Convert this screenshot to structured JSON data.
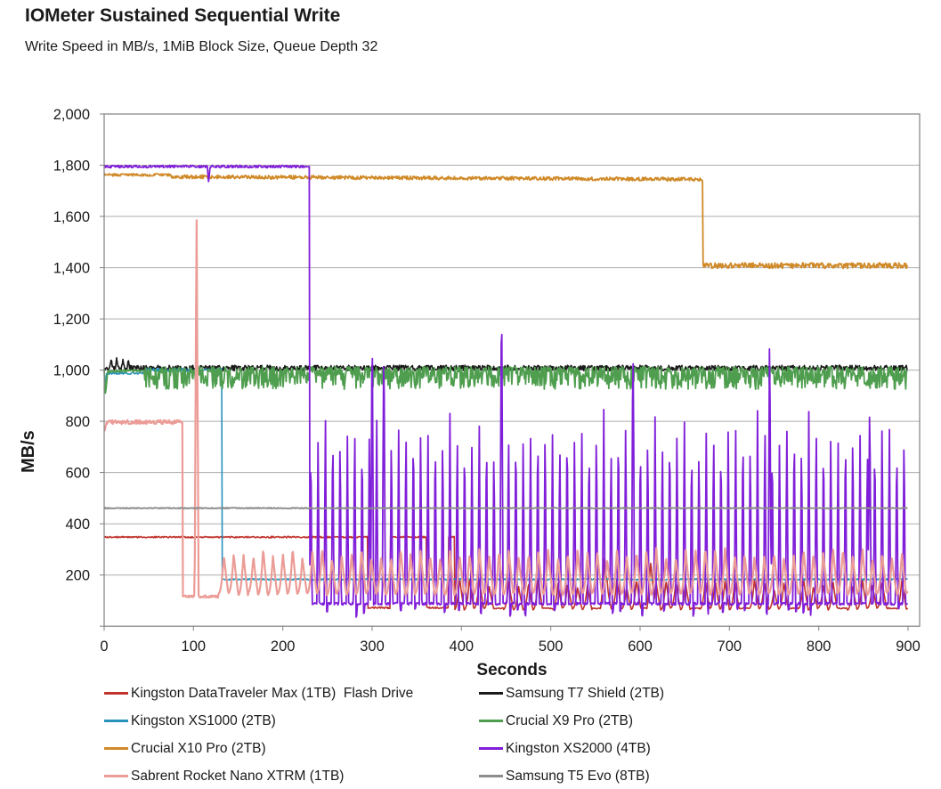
{
  "header": {
    "title": "IOMeter Sustained Sequential Write",
    "subtitle": "Write Speed in MB/s, 1MiB Block Size, Queue Depth 32"
  },
  "chart_data": {
    "type": "line",
    "title": "IOMeter Sustained Sequential Write",
    "subtitle": "Write Speed in MB/s, 1MiB Block Size, Queue Depth 32",
    "xlabel": "Seconds",
    "ylabel": "MB/s",
    "xlim": [
      0,
      900
    ],
    "ylim": [
      0,
      2000
    ],
    "grid": "horizontal-only",
    "legend_position": "bottom-two-columns",
    "axis_color": "#808080",
    "grid_color": "#ADADAD",
    "tick_label_color": "#1a1a1a",
    "x_ticks": [
      {
        "v": 0,
        "label": "0"
      },
      {
        "v": 100,
        "label": "100"
      },
      {
        "v": 200,
        "label": "200"
      },
      {
        "v": 300,
        "label": "300"
      },
      {
        "v": 400,
        "label": "400"
      },
      {
        "v": 500,
        "label": "500"
      },
      {
        "v": 600,
        "label": "600"
      },
      {
        "v": 700,
        "label": "700"
      },
      {
        "v": 800,
        "label": "800"
      },
      {
        "v": 900,
        "label": "900"
      }
    ],
    "y_ticks": [
      {
        "v": 200,
        "label": "200"
      },
      {
        "v": 400,
        "label": "400"
      },
      {
        "v": 600,
        "label": "600"
      },
      {
        "v": 800,
        "label": "800"
      },
      {
        "v": 1000,
        "label": "1,000"
      },
      {
        "v": 1200,
        "label": "1,200"
      },
      {
        "v": 1400,
        "label": "1,400"
      },
      {
        "v": 1600,
        "label": "1,600"
      },
      {
        "v": 1800,
        "label": "1,800"
      },
      {
        "v": 2000,
        "label": "2,000"
      }
    ],
    "series": [
      {
        "name": "Kingston DataTraveler Max (1TB)  Flash Drive",
        "color": "#C0342C",
        "width": 1.6,
        "summary": "348 MB/s steady until ~295 s, square-wave between 348 and ~72 until ~392 s, then oscillates ~67-172 with periodic flat lows",
        "segments": [
          {
            "t0": 0,
            "t1": 295,
            "type": "flat",
            "v": 348,
            "noise": 3
          },
          {
            "t0": 295,
            "t1": 320,
            "type": "flat",
            "v": 72,
            "noise": 3
          },
          {
            "t0": 320,
            "t1": 361,
            "type": "flat",
            "v": 348,
            "noise": 3
          },
          {
            "t0": 361,
            "t1": 385,
            "type": "flat",
            "v": 72,
            "noise": 3
          },
          {
            "t0": 385,
            "t1": 392,
            "type": "flat",
            "v": 348,
            "noise": 3
          },
          {
            "t0": 392,
            "t1": 901,
            "type": "osc",
            "lo": 67,
            "hi": 170,
            "period": 11,
            "var": 24,
            "drop_every": 5
          }
        ],
        "events": [
          [
            560,
            265,
            4
          ],
          [
            612,
            255,
            4
          ]
        ]
      },
      {
        "name": "Samsung T7 Shield (2TB)",
        "color": "#1A1A1A",
        "width": 1.6,
        "summary": "~1010 MB/s steady for full 900 s with small spikes to ~1045 in first 30 s",
        "segments": [
          {
            "t0": 0,
            "t1": 901,
            "type": "flat",
            "v": 1008,
            "noise": 11
          }
        ],
        "events": [
          [
            8,
            1048,
            1.4
          ],
          [
            14,
            1048,
            1.4
          ],
          [
            21,
            1042,
            1.4
          ],
          [
            27,
            1045,
            1.4
          ]
        ]
      },
      {
        "name": "Kingston XS1000 (2TB)",
        "color": "#2792BC",
        "width": 1.6,
        "summary": "~990-1000 MB/s until ~132 s, then drops to ~183 MB/s flat",
        "segments": [
          {
            "t0": 0,
            "t1": 3,
            "type": "ramp",
            "v0": 930,
            "v1": 988,
            "noise": 3
          },
          {
            "t0": 3,
            "t1": 45,
            "type": "flat",
            "v": 988,
            "noise": 4
          },
          {
            "t0": 45,
            "t1": 132,
            "type": "flat",
            "v": 1000,
            "noise": 7
          },
          {
            "t0": 132,
            "t1": 901,
            "type": "flat",
            "v": 183,
            "noise": 3
          }
        ],
        "events": []
      },
      {
        "name": "Crucial X9 Pro (2TB)",
        "color": "#4F9E4F",
        "width": 1.8,
        "summary": "dip to ~905 at start, ~995 until ~45 s, then dense oscillating band ~925-1012 MB/s to 900 s",
        "segments": [
          {
            "t0": 0,
            "t1": 1.5,
            "type": "ramp",
            "v0": 1002,
            "v1": 905,
            "noise": 2
          },
          {
            "t0": 1.5,
            "t1": 4,
            "type": "ramp",
            "v0": 905,
            "v1": 996,
            "noise": 2
          },
          {
            "t0": 4,
            "t1": 45,
            "type": "flat",
            "v": 996,
            "noise": 5
          },
          {
            "t0": 45,
            "t1": 901,
            "type": "band",
            "lo": 925,
            "hi": 1012
          }
        ],
        "events": []
      },
      {
        "name": "Crucial X10 Pro (2TB)",
        "color": "#D08A28",
        "width": 1.8,
        "summary": "~1762 MB/s, easing to ~1746, until ~670 s, then steps down to ~1408 MB/s",
        "segments": [
          {
            "t0": 0,
            "t1": 75,
            "type": "flat",
            "v": 1762,
            "noise": 5
          },
          {
            "t0": 75,
            "t1": 670,
            "type": "ramp",
            "v0": 1755,
            "v1": 1745,
            "noise": 7
          },
          {
            "t0": 670,
            "t1": 901,
            "type": "flat",
            "v": 1408,
            "noise": 11
          }
        ],
        "events": []
      },
      {
        "name": "Kingston XS2000 (4TB)",
        "color": "#801FD9",
        "width": 1.8,
        "summary": "~1795 MB/s until ~230 s, then baseline ~88 MB/s with spikes to ~800 every ~8 s; tall spikes ~1265 @300s, ~1240 @445s, ~1060 @592s, ~1225 @745s",
        "segments": [
          {
            "t0": 0,
            "t1": 230,
            "type": "flat",
            "v": 1795,
            "noise": 5
          },
          {
            "t0": 230,
            "t1": 901,
            "type": "spikes",
            "base": 88,
            "noise": 5,
            "period": 8.2,
            "peak": 800,
            "peak_var": 55,
            "under": 48
          }
        ],
        "events": [
          [
            117,
            1732,
            1.5
          ],
          [
            300,
            1265,
            1.6
          ],
          [
            313,
            1040,
            1.6
          ],
          [
            445,
            1240,
            1.6
          ],
          [
            592,
            1060,
            1.6
          ],
          [
            745,
            1225,
            1.6
          ],
          [
            857,
            920,
            1.6
          ]
        ]
      },
      {
        "name": "Sabrent Rocket Nano XTRM (1TB)",
        "color": "#EC9C96",
        "width": 2.2,
        "summary": "~797 MB/s until ~88 s, single spike to ~1655 @103 s, then sawtooth ~125-290 MB/s (period ~11 s) to 900 s",
        "segments": [
          {
            "t0": 0,
            "t1": 3,
            "type": "ramp",
            "v0": 760,
            "v1": 797,
            "noise": 4
          },
          {
            "t0": 3,
            "t1": 88,
            "type": "flat",
            "v": 797,
            "noise": 8
          },
          {
            "t0": 88,
            "t1": 128,
            "type": "flat",
            "v": 116,
            "noise": 5
          },
          {
            "t0": 128,
            "t1": 901,
            "type": "osc",
            "lo": 126,
            "hi": 288,
            "period": 11,
            "var": 22
          }
        ],
        "events": [
          [
            103.5,
            1655,
            2.2
          ]
        ]
      },
      {
        "name": "Samsung T5 Evo (8TB)",
        "color": "#8C8C8C",
        "width": 1.8,
        "summary": "~461 MB/s flat for full 900 s",
        "segments": [
          {
            "t0": 0,
            "t1": 901,
            "type": "flat",
            "v": 461,
            "noise": 2
          }
        ],
        "events": []
      }
    ]
  }
}
